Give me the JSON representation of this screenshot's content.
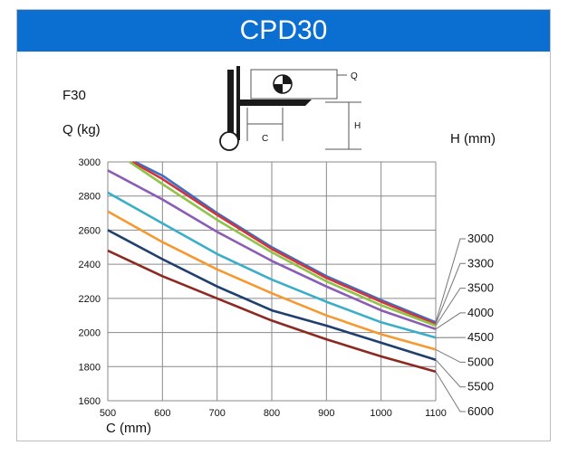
{
  "banner": {
    "title": "CPD30",
    "color": "#0a6fd0"
  },
  "chart_data": {
    "type": "line",
    "title": "CPD30",
    "model_label": "F30",
    "xlabel": "C (mm)",
    "ylabel": "Q (kg)",
    "series_axis_label": "H (mm)",
    "xlim": [
      500,
      1100
    ],
    "ylim": [
      1600,
      3000
    ],
    "x_ticks": [
      500,
      600,
      700,
      800,
      900,
      1000,
      1100
    ],
    "y_ticks": [
      1600,
      1800,
      2000,
      2200,
      2400,
      2600,
      2800,
      3000
    ],
    "grid": true,
    "diagram_labels": {
      "q": "Q",
      "c": "C",
      "h": "H"
    },
    "series": [
      {
        "name": "3000",
        "color": "#3a6fc4",
        "x": [
          550,
          600,
          700,
          800,
          900,
          1000,
          1100
        ],
        "y": [
          3000,
          2920,
          2700,
          2500,
          2330,
          2190,
          2060
        ]
      },
      {
        "name": "3300",
        "color": "#d3343b",
        "x": [
          545,
          600,
          700,
          800,
          900,
          1000,
          1100
        ],
        "y": [
          3000,
          2900,
          2690,
          2490,
          2320,
          2180,
          2050
        ]
      },
      {
        "name": "3500",
        "color": "#90c34a",
        "x": [
          540,
          600,
          700,
          800,
          900,
          1000,
          1100
        ],
        "y": [
          3000,
          2870,
          2660,
          2470,
          2300,
          2160,
          2040
        ]
      },
      {
        "name": "4000",
        "color": "#8a5cb5",
        "x": [
          500,
          600,
          700,
          800,
          900,
          1000,
          1100
        ],
        "y": [
          2950,
          2780,
          2590,
          2420,
          2270,
          2130,
          2020
        ]
      },
      {
        "name": "4500",
        "color": "#3aaec8",
        "x": [
          500,
          600,
          700,
          800,
          900,
          1000,
          1100
        ],
        "y": [
          2820,
          2640,
          2460,
          2310,
          2180,
          2060,
          1970
        ]
      },
      {
        "name": "5000",
        "color": "#f59a31",
        "x": [
          500,
          600,
          700,
          800,
          900,
          1000,
          1100
        ],
        "y": [
          2710,
          2530,
          2370,
          2230,
          2100,
          1990,
          1900
        ]
      },
      {
        "name": "5500",
        "color": "#1f3f6e",
        "x": [
          500,
          600,
          700,
          800,
          900,
          1000,
          1100
        ],
        "y": [
          2600,
          2430,
          2270,
          2130,
          2040,
          1940,
          1840
        ]
      },
      {
        "name": "6000",
        "color": "#8c2a22",
        "x": [
          500,
          600,
          700,
          800,
          900,
          1000,
          1100
        ],
        "y": [
          2480,
          2330,
          2200,
          2070,
          1960,
          1860,
          1770
        ]
      }
    ]
  }
}
